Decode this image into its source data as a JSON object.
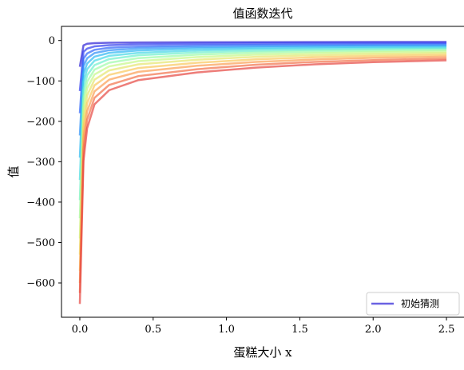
{
  "chart_data": {
    "type": "line",
    "title": "值函数迭代",
    "xlabel": "蛋糕大小 x",
    "ylabel": "值",
    "xlim": [
      -0.125,
      2.625
    ],
    "ylim": [
      -685,
      35
    ],
    "xticks": [
      0.0,
      0.5,
      1.0,
      1.5,
      2.0,
      2.5
    ],
    "xtick_labels": [
      "0.0",
      "0.5",
      "1.0",
      "1.5",
      "2.0",
      "2.5"
    ],
    "yticks": [
      0,
      -100,
      -200,
      -300,
      -400,
      -500,
      -600
    ],
    "ytick_labels": [
      "0",
      "−100",
      "−200",
      "−300",
      "−400",
      "−500",
      "−600"
    ],
    "grid": false,
    "legend": {
      "position": "bottom-right",
      "entries": [
        "初始猜测"
      ]
    },
    "colors": [
      "#2b1fd6",
      "#2f3cf0",
      "#2f64fa",
      "#2c8ff8",
      "#2cb6f2",
      "#44d7e6",
      "#6ef0cc",
      "#9cfba8",
      "#c6f887",
      "#e6e66e",
      "#f9c75d",
      "#fb9e52",
      "#f27048",
      "#e54640"
    ],
    "series": [
      {
        "x": [
          0.0001,
          0.025,
          0.05,
          0.1,
          0.2,
          0.4,
          0.8,
          1.2,
          1.6,
          2.0,
          2.5
        ],
        "values": [
          -65,
          -12,
          -8,
          -6.5,
          -5.5,
          -4.8,
          -4.3,
          -4.0,
          -3.8,
          -3.7,
          -3.5
        ]
      },
      {
        "x": [
          0.0001,
          0.025,
          0.05,
          0.1,
          0.2,
          0.4,
          0.8,
          1.2,
          1.6,
          2.0,
          2.5
        ],
        "values": [
          -125,
          -28,
          -20,
          -14.5,
          -11.5,
          -9.5,
          -8,
          -7.2,
          -6.8,
          -6.5,
          -6.2
        ]
      },
      {
        "x": [
          0.0001,
          0.025,
          0.05,
          0.1,
          0.2,
          0.4,
          0.8,
          1.2,
          1.6,
          2.0,
          2.5
        ],
        "values": [
          -180,
          -45,
          -32,
          -23,
          -18,
          -15,
          -12.5,
          -11,
          -10.2,
          -9.7,
          -9.2
        ]
      },
      {
        "x": [
          0.0001,
          0.025,
          0.05,
          0.1,
          0.2,
          0.4,
          0.8,
          1.2,
          1.6,
          2.0,
          2.5
        ],
        "values": [
          -235,
          -63,
          -44,
          -31,
          -24,
          -19.5,
          -16,
          -14.3,
          -13.3,
          -12.6,
          -12
        ]
      },
      {
        "x": [
          0.0001,
          0.025,
          0.05,
          0.1,
          0.2,
          0.4,
          0.8,
          1.2,
          1.6,
          2.0,
          2.5
        ],
        "values": [
          -290,
          -82,
          -57,
          -40,
          -30.5,
          -24.5,
          -20,
          -17.7,
          -16.4,
          -15.5,
          -14.7
        ]
      },
      {
        "x": [
          0.0001,
          0.025,
          0.05,
          0.1,
          0.2,
          0.4,
          0.8,
          1.2,
          1.6,
          2.0,
          2.5
        ],
        "values": [
          -345,
          -102,
          -71,
          -50,
          -38,
          -30.5,
          -24.5,
          -21.5,
          -19.8,
          -18.6,
          -17.6
        ]
      },
      {
        "x": [
          0.0001,
          0.025,
          0.05,
          0.1,
          0.2,
          0.4,
          0.8,
          1.2,
          1.6,
          2.0,
          2.5
        ],
        "values": [
          -395,
          -123,
          -86,
          -61,
          -46,
          -36.5,
          -29.5,
          -25.5,
          -23.3,
          -21.8,
          -20.5
        ]
      },
      {
        "x": [
          0.0001,
          0.025,
          0.05,
          0.1,
          0.2,
          0.4,
          0.8,
          1.2,
          1.6,
          2.0,
          2.5
        ],
        "values": [
          -440,
          -145,
          -102,
          -72,
          -55,
          -43.5,
          -35,
          -30,
          -27.2,
          -25.3,
          -23.7
        ]
      },
      {
        "x": [
          0.0001,
          0.025,
          0.05,
          0.1,
          0.2,
          0.4,
          0.8,
          1.2,
          1.6,
          2.0,
          2.5
        ],
        "values": [
          -490,
          -168,
          -118,
          -84,
          -64,
          -51,
          -41,
          -35,
          -31.6,
          -29.3,
          -27.3
        ]
      },
      {
        "x": [
          0.0001,
          0.025,
          0.05,
          0.1,
          0.2,
          0.4,
          0.8,
          1.2,
          1.6,
          2.0,
          2.5
        ],
        "values": [
          -530,
          -192,
          -136,
          -97,
          -74,
          -59,
          -47.5,
          -40.5,
          -36.4,
          -33.6,
          -31.2
        ]
      },
      {
        "x": [
          0.0001,
          0.025,
          0.05,
          0.1,
          0.2,
          0.4,
          0.8,
          1.2,
          1.6,
          2.0,
          2.5
        ],
        "values": [
          -570,
          -217,
          -155,
          -111,
          -85,
          -68,
          -55,
          -46.5,
          -41.5,
          -38.2,
          -35.5
        ]
      },
      {
        "x": [
          0.0001,
          0.025,
          0.05,
          0.1,
          0.2,
          0.4,
          0.8,
          1.2,
          1.6,
          2.0,
          2.5
        ],
        "values": [
          -600,
          -243,
          -175,
          -126,
          -97,
          -77.5,
          -62.5,
          -53,
          -47,
          -43,
          -40
        ]
      },
      {
        "x": [
          0.0001,
          0.025,
          0.05,
          0.1,
          0.2,
          0.4,
          0.8,
          1.2,
          1.6,
          2.0,
          2.5
        ],
        "values": [
          -625,
          -270,
          -196,
          -142,
          -110,
          -88,
          -71,
          -60,
          -53,
          -48.5,
          -44.5
        ]
      },
      {
        "x": [
          0.0001,
          0.025,
          0.05,
          0.1,
          0.2,
          0.4,
          0.8,
          1.2,
          1.6,
          2.0,
          2.5
        ],
        "values": [
          -652,
          -298,
          -217,
          -158,
          -123,
          -98,
          -79,
          -67,
          -59,
          -53.5,
          -49
        ]
      }
    ]
  }
}
